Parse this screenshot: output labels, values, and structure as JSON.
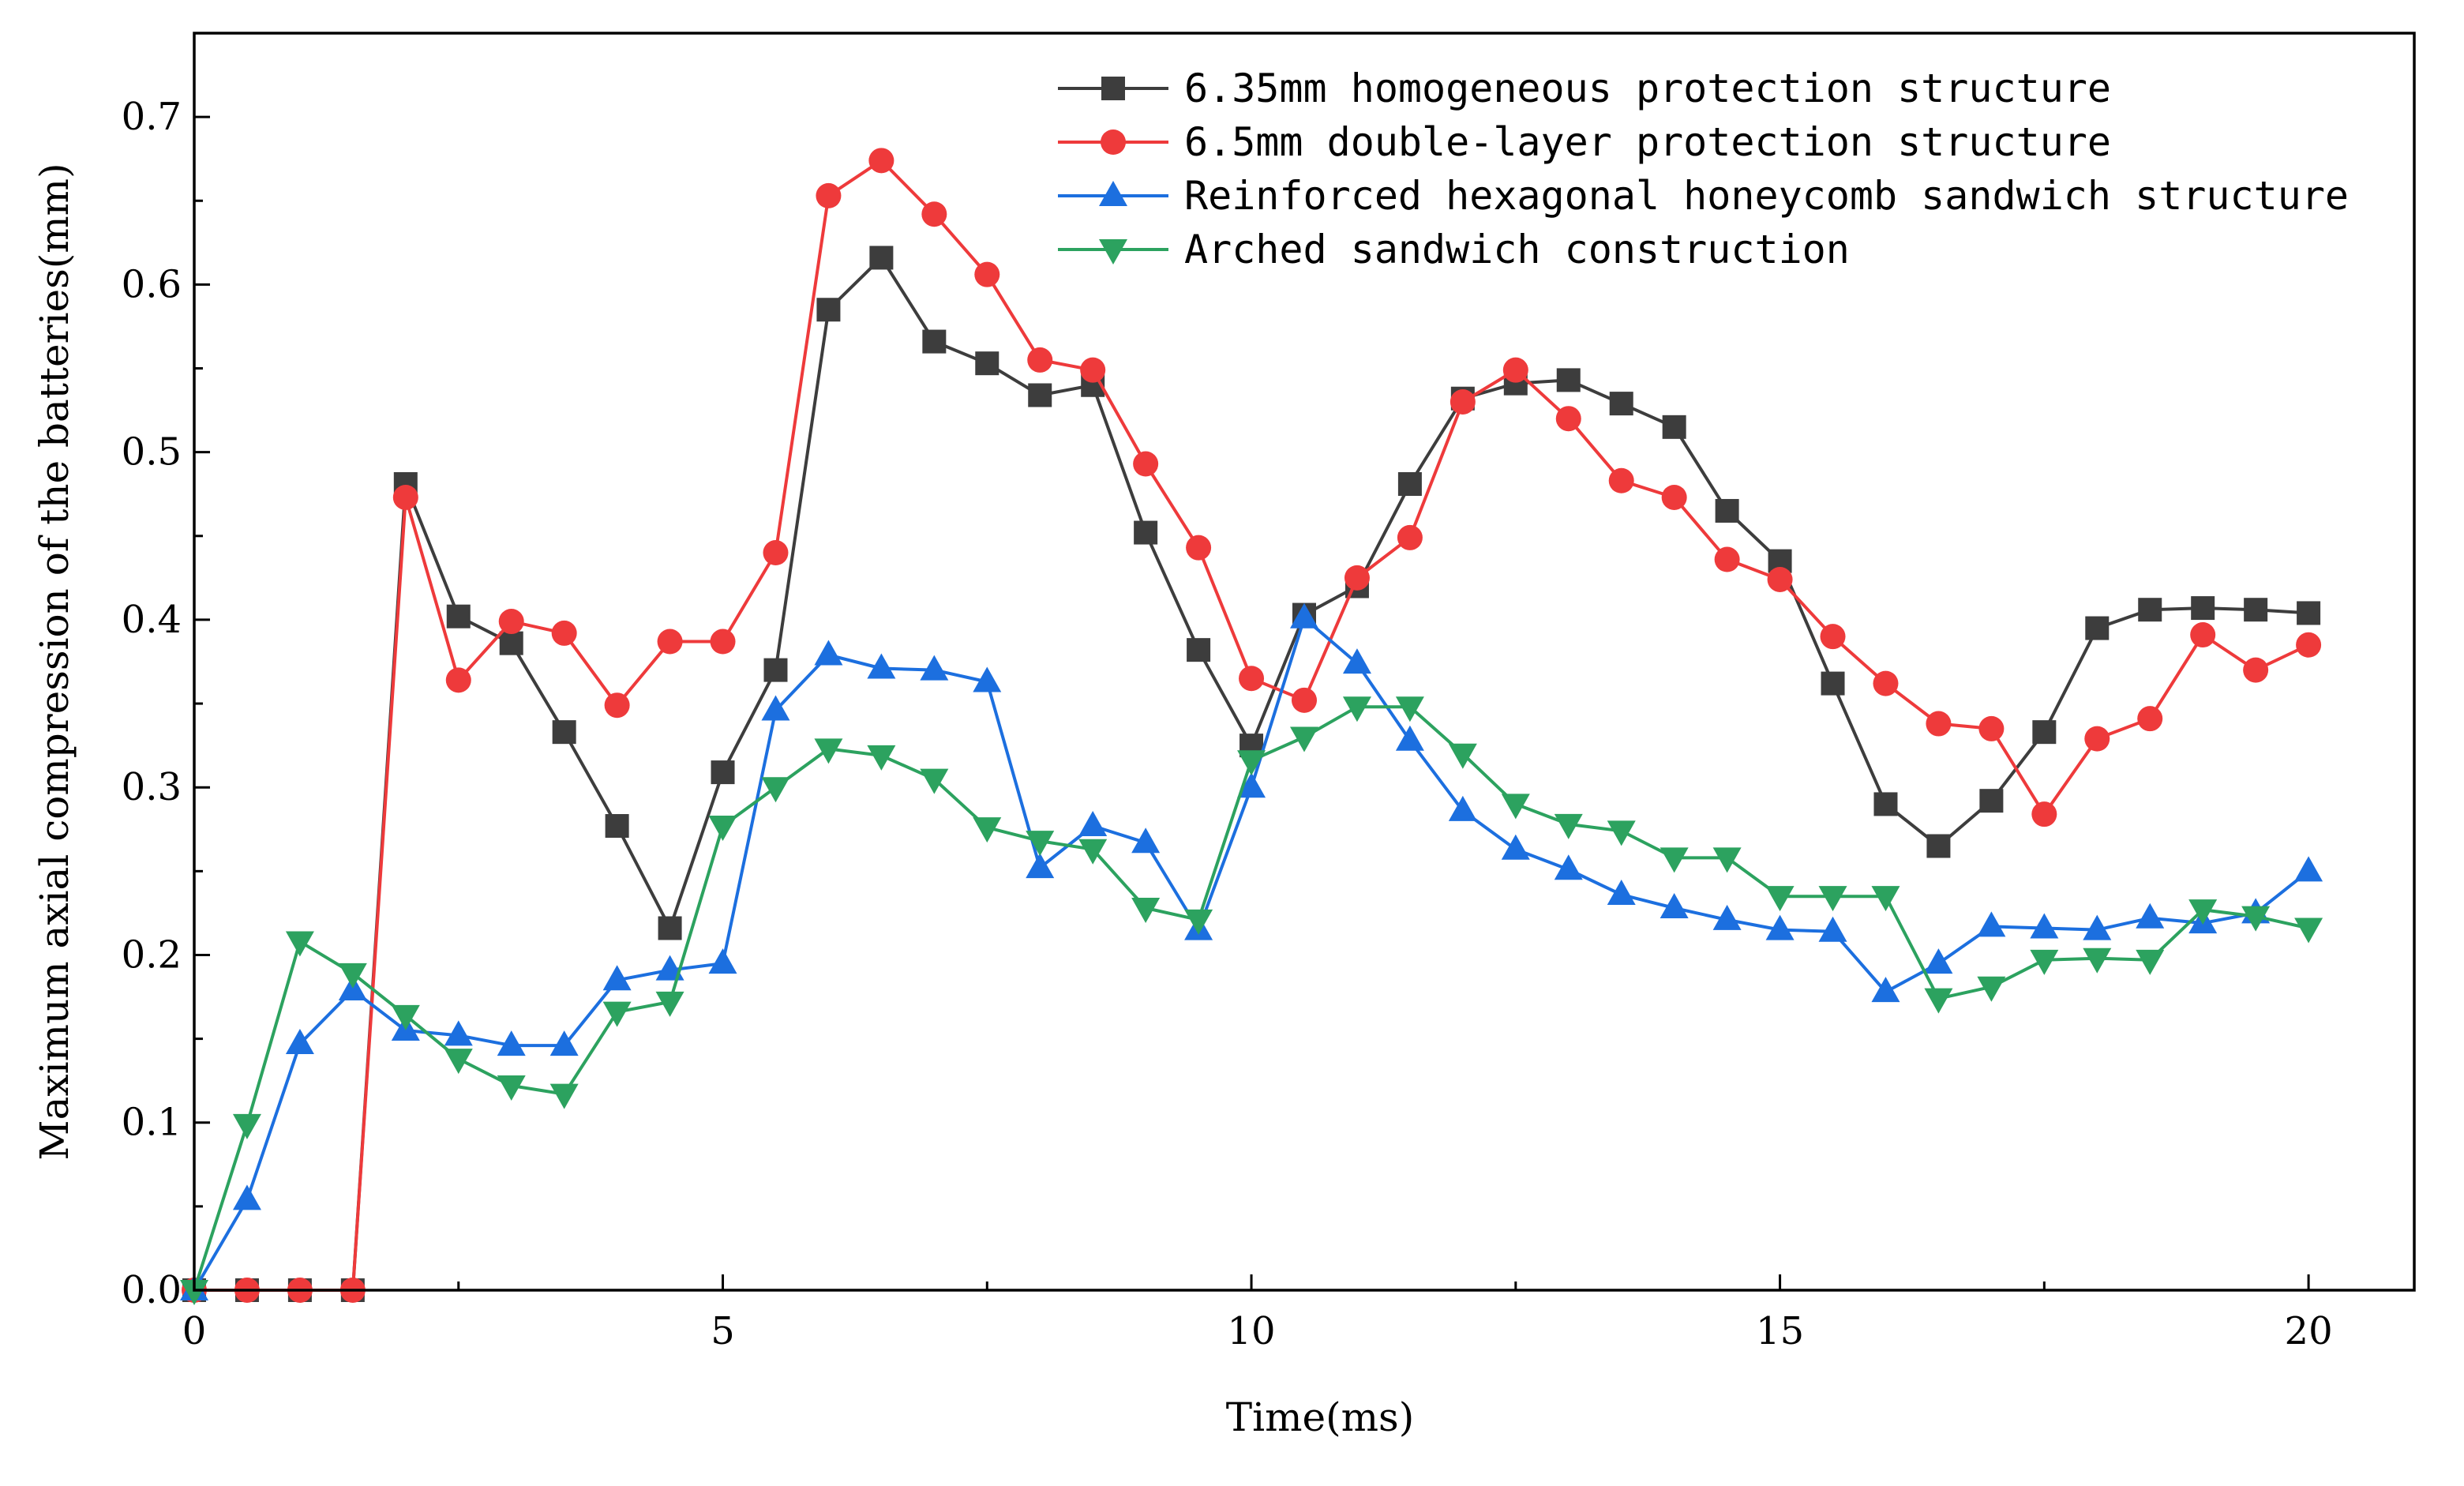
{
  "chart_data": {
    "type": "line",
    "title": "",
    "xlabel": "Time(ms)",
    "ylabel": "Maximum axial compression of the batteries(mm)",
    "xlim": [
      0,
      21
    ],
    "ylim": [
      0,
      0.75
    ],
    "xticks": [
      0,
      5,
      10,
      15,
      20
    ],
    "xtick_labels": [
      "0",
      "5",
      "10",
      "15",
      "20"
    ],
    "yticks": [
      0,
      0.1,
      0.2,
      0.3,
      0.4,
      0.5,
      0.6,
      0.7
    ],
    "ytick_labels": [
      "0.0",
      "0.1",
      "0.2",
      "0.3",
      "0.4",
      "0.5",
      "0.6",
      "0.7"
    ],
    "grid": false,
    "legend_position": "top-right",
    "x": [
      0,
      0.5,
      1,
      1.5,
      2,
      2.5,
      3,
      3.5,
      4,
      4.5,
      5,
      5.5,
      6,
      6.5,
      7,
      7.5,
      8,
      8.5,
      9,
      9.5,
      10,
      10.5,
      11,
      11.5,
      12,
      12.5,
      13,
      13.5,
      14,
      14.5,
      15,
      15.5,
      16,
      16.5,
      17,
      17.5,
      18,
      18.5,
      19,
      19.5,
      20
    ],
    "series": [
      {
        "name": "6.35mm homogeneous protection structure",
        "color": "#3d3d3d",
        "marker": "square",
        "values": [
          0,
          0,
          0,
          0,
          0.481,
          0.402,
          0.386,
          0.333,
          0.277,
          0.216,
          0.309,
          0.37,
          0.585,
          0.616,
          0.566,
          0.553,
          0.534,
          0.54,
          0.452,
          0.382,
          0.325,
          0.403,
          0.42,
          0.481,
          0.532,
          0.541,
          0.543,
          0.529,
          0.515,
          0.465,
          0.435,
          0.362,
          0.29,
          0.265,
          0.292,
          0.333,
          0.395,
          0.406,
          0.407,
          0.406,
          0.404
        ]
      },
      {
        "name": "6.5mm double-layer protection structure",
        "color": "#ee3a3b",
        "marker": "circle",
        "values": [
          0,
          0,
          0,
          0,
          0.473,
          0.364,
          0.399,
          0.392,
          0.349,
          0.387,
          0.387,
          0.44,
          0.653,
          0.674,
          0.642,
          0.606,
          0.555,
          0.549,
          0.493,
          0.443,
          0.365,
          0.352,
          0.425,
          0.449,
          0.53,
          0.549,
          0.52,
          0.483,
          0.473,
          0.436,
          0.424,
          0.39,
          0.362,
          0.338,
          0.335,
          0.284,
          0.329,
          0.341,
          0.391,
          0.37,
          0.385
        ]
      },
      {
        "name": "Reinforced hexagonal honeycomb sandwich structure",
        "color": "#1c6fdf",
        "marker": "triangle-up",
        "values": [
          0,
          0.054,
          0.147,
          0.179,
          0.155,
          0.152,
          0.146,
          0.146,
          0.185,
          0.191,
          0.195,
          0.346,
          0.379,
          0.371,
          0.37,
          0.363,
          0.252,
          0.277,
          0.267,
          0.215,
          0.3,
          0.401,
          0.374,
          0.328,
          0.286,
          0.263,
          0.251,
          0.236,
          0.228,
          0.221,
          0.215,
          0.214,
          0.178,
          0.195,
          0.217,
          0.216,
          0.215,
          0.222,
          0.219,
          0.225,
          0.25
        ]
      },
      {
        "name": "Arched sandwich construction",
        "color": "#2ca25f",
        "marker": "triangle-down",
        "values": [
          0,
          0.099,
          0.208,
          0.189,
          0.164,
          0.138,
          0.122,
          0.117,
          0.166,
          0.172,
          0.277,
          0.3,
          0.323,
          0.319,
          0.305,
          0.276,
          0.268,
          0.263,
          0.228,
          0.221,
          0.316,
          0.33,
          0.348,
          0.348,
          0.32,
          0.29,
          0.278,
          0.274,
          0.258,
          0.258,
          0.235,
          0.235,
          0.235,
          0.174,
          0.181,
          0.197,
          0.198,
          0.197,
          0.227,
          0.223,
          0.216
        ]
      }
    ]
  }
}
